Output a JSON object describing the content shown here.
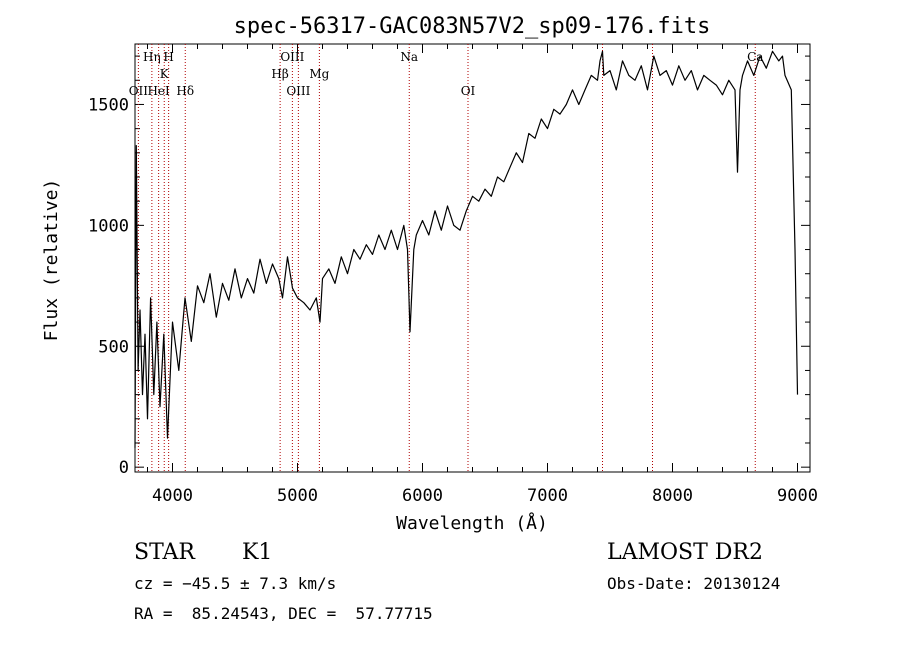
{
  "chart_data": {
    "type": "line",
    "title": "spec-56317-GAC083N57V2_sp09-176.fits",
    "xlabel": "Wavelength (Å)",
    "ylabel": "Flux (relative)",
    "xlim": [
      3700,
      9100
    ],
    "ylim": [
      -20,
      1750
    ],
    "x_ticks": [
      4000,
      5000,
      6000,
      7000,
      8000,
      9000
    ],
    "y_ticks": [
      0,
      500,
      1000,
      1500
    ],
    "grid": false,
    "series": [
      {
        "x": [
          3700,
          3710,
          3725,
          3740,
          3760,
          3780,
          3800,
          3825,
          3850,
          3875,
          3900,
          3930,
          3960,
          4000,
          4050,
          4100,
          4150,
          4200,
          4250,
          4300,
          4350,
          4400,
          4450,
          4500,
          4550,
          4600,
          4650,
          4700,
          4750,
          4800,
          4850,
          4880,
          4920,
          4960,
          5000,
          5050,
          5100,
          5150,
          5180,
          5200,
          5250,
          5300,
          5350,
          5400,
          5450,
          5500,
          5550,
          5600,
          5650,
          5700,
          5750,
          5800,
          5850,
          5880,
          5900,
          5930,
          5950,
          6000,
          6050,
          6100,
          6150,
          6200,
          6250,
          6300,
          6350,
          6400,
          6450,
          6500,
          6550,
          6600,
          6650,
          6700,
          6750,
          6800,
          6850,
          6900,
          6950,
          7000,
          7050,
          7100,
          7150,
          7200,
          7250,
          7300,
          7350,
          7400,
          7420,
          7440,
          7450,
          7500,
          7550,
          7600,
          7650,
          7700,
          7750,
          7800,
          7850,
          7900,
          7950,
          8000,
          8050,
          8100,
          8150,
          8200,
          8250,
          8300,
          8350,
          8400,
          8450,
          8500,
          8520,
          8540,
          8560,
          8600,
          8650,
          8700,
          8750,
          8800,
          8850,
          8880,
          8900,
          8950,
          8980,
          9000
        ],
        "y": [
          80,
          1330,
          400,
          650,
          300,
          550,
          200,
          700,
          300,
          600,
          250,
          550,
          120,
          600,
          400,
          700,
          520,
          750,
          680,
          800,
          620,
          760,
          690,
          820,
          700,
          780,
          720,
          860,
          760,
          840,
          780,
          700,
          870,
          740,
          700,
          680,
          650,
          700,
          600,
          780,
          820,
          760,
          870,
          800,
          900,
          860,
          920,
          880,
          960,
          900,
          980,
          900,
          1000,
          900,
          560,
          900,
          960,
          1020,
          960,
          1060,
          980,
          1080,
          1000,
          980,
          1060,
          1120,
          1100,
          1150,
          1120,
          1200,
          1180,
          1240,
          1300,
          1260,
          1380,
          1360,
          1440,
          1400,
          1480,
          1460,
          1500,
          1560,
          1500,
          1560,
          1620,
          1600,
          1680,
          1720,
          1620,
          1640,
          1560,
          1680,
          1620,
          1600,
          1660,
          1560,
          1700,
          1620,
          1640,
          1580,
          1660,
          1600,
          1640,
          1560,
          1620,
          1600,
          1580,
          1540,
          1600,
          1560,
          1220,
          1560,
          1620,
          1680,
          1620,
          1700,
          1650,
          1720,
          1680,
          1700,
          1620,
          1560,
          900,
          300
        ]
      }
    ],
    "spectral_lines": [
      {
        "label": "OII",
        "x": 3727,
        "row": 3
      },
      {
        "label": "Hη",
        "x": 3835,
        "row": 1
      },
      {
        "label": "HeI",
        "x": 3889,
        "row": 3
      },
      {
        "label": "K",
        "x": 3934,
        "row": 2
      },
      {
        "label": "H",
        "x": 3969,
        "row": 1
      },
      {
        "label": "Hδ",
        "x": 4102,
        "row": 3
      },
      {
        "label": "Hβ",
        "x": 4861,
        "row": 2
      },
      {
        "label": "OIII",
        "x": 4959,
        "row": 1
      },
      {
        "label": "OIII",
        "x": 5007,
        "row": 3
      },
      {
        "label": "Mg",
        "x": 5175,
        "row": 2
      },
      {
        "label": "Na",
        "x": 5894,
        "row": 1
      },
      {
        "label": "OI",
        "x": 6364,
        "row": 3
      },
      {
        "label": "",
        "x": 7440,
        "row": 0
      },
      {
        "label": "",
        "x": 7840,
        "row": 0
      },
      {
        "label": "Ca",
        "x": 8662,
        "row": 1
      }
    ]
  },
  "info": {
    "class": "STAR",
    "subclass": "K1",
    "survey": "LAMOST DR2",
    "cz": "cz = −45.5 ± 7.3 km/s",
    "obs_date": "Obs-Date: 20130124",
    "coords": "RA =  85.24543, DEC =  57.77715"
  }
}
